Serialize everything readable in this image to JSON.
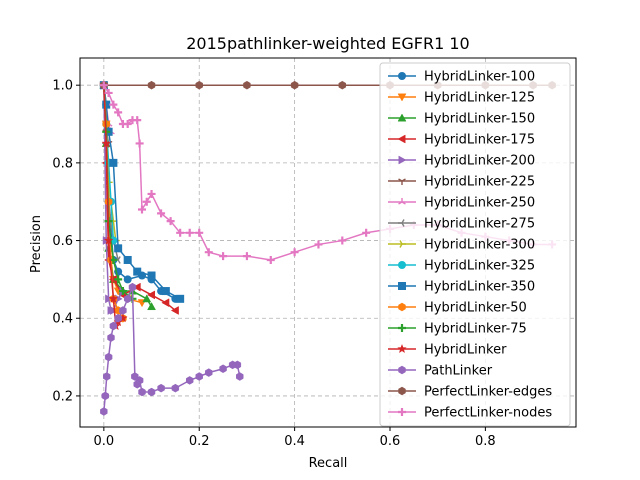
{
  "chart_data": {
    "type": "line",
    "title": "2015pathlinker-weighted EGFR1 10",
    "xlabel": "Recall",
    "ylabel": "Precision",
    "xlim": [
      -0.05,
      0.99
    ],
    "ylim": [
      0.12,
      1.07
    ],
    "xticks": [
      0.0,
      0.2,
      0.4,
      0.6,
      0.8
    ],
    "yticks": [
      0.2,
      0.4,
      0.6,
      0.8,
      1.0
    ],
    "xtick_labels": [
      "0.0",
      "0.2",
      "0.4",
      "0.6",
      "0.8"
    ],
    "ytick_labels": [
      "0.2",
      "0.4",
      "0.6",
      "0.8",
      "1.0"
    ],
    "grid": true,
    "legend_position": "upper right",
    "series": [
      {
        "name": "HybridLinker-100",
        "color": "#1f77b4",
        "marker": "circle",
        "x": [
          0.0,
          0.005,
          0.01,
          0.02,
          0.03,
          0.05,
          0.08,
          0.1,
          0.12,
          0.15
        ],
        "y": [
          1.0,
          0.95,
          0.7,
          0.55,
          0.52,
          0.5,
          0.51,
          0.5,
          0.47,
          0.45
        ]
      },
      {
        "name": "HybridLinker-125",
        "color": "#ff7f0e",
        "marker": "triangle-down",
        "x": [
          0.0,
          0.005,
          0.01,
          0.02,
          0.03,
          0.05,
          0.08
        ],
        "y": [
          1.0,
          0.9,
          0.6,
          0.5,
          0.47,
          0.45,
          0.44
        ]
      },
      {
        "name": "HybridLinker-150",
        "color": "#2ca02c",
        "marker": "triangle-up",
        "x": [
          0.0,
          0.005,
          0.01,
          0.02,
          0.04,
          0.06,
          0.09,
          0.1
        ],
        "y": [
          1.0,
          0.85,
          0.58,
          0.5,
          0.47,
          0.47,
          0.45,
          0.43
        ]
      },
      {
        "name": "HybridLinker-175",
        "color": "#d62728",
        "marker": "triangle-left",
        "x": [
          0.0,
          0.005,
          0.01,
          0.02,
          0.04,
          0.07,
          0.1,
          0.13,
          0.15
        ],
        "y": [
          1.0,
          0.8,
          0.55,
          0.5,
          0.46,
          0.48,
          0.46,
          0.44,
          0.42
        ]
      },
      {
        "name": "HybridLinker-200",
        "color": "#9467bd",
        "marker": "triangle-right",
        "x": [
          0.0,
          0.005,
          0.01,
          0.015,
          0.02,
          0.03,
          0.04
        ],
        "y": [
          1.0,
          0.6,
          0.45,
          0.42,
          0.42,
          0.45,
          0.47
        ]
      },
      {
        "name": "HybridLinker-225",
        "color": "#8c564b",
        "marker": "tri-down",
        "x": [
          0.0,
          0.005,
          0.01
        ],
        "y": [
          1.0,
          0.88,
          0.85
        ]
      },
      {
        "name": "HybridLinker-250",
        "color": "#e377c2",
        "marker": "tri-up",
        "x": [
          0.0,
          0.005,
          0.01,
          0.015
        ],
        "y": [
          1.0,
          0.95,
          0.9,
          0.88
        ]
      },
      {
        "name": "HybridLinker-275",
        "color": "#7f7f7f",
        "marker": "tri-left",
        "x": [
          0.0,
          0.005,
          0.01,
          0.02,
          0.03
        ],
        "y": [
          1.0,
          0.85,
          0.7,
          0.6,
          0.55
        ]
      },
      {
        "name": "HybridLinker-300",
        "color": "#bcbd22",
        "marker": "tri-right",
        "x": [
          0.0,
          0.005,
          0.01,
          0.02,
          0.025
        ],
        "y": [
          1.0,
          0.9,
          0.75,
          0.65,
          0.6
        ]
      },
      {
        "name": "HybridLinker-325",
        "color": "#17becf",
        "marker": "circle",
        "x": [
          0.0,
          0.005,
          0.01,
          0.015,
          0.02
        ],
        "y": [
          1.0,
          0.9,
          0.8,
          0.7,
          0.6
        ]
      },
      {
        "name": "HybridLinker-350",
        "color": "#1f77b4",
        "marker": "square",
        "x": [
          0.0,
          0.005,
          0.01,
          0.02,
          0.03,
          0.05,
          0.07,
          0.1,
          0.13,
          0.16
        ],
        "y": [
          1.0,
          0.95,
          0.88,
          0.8,
          0.58,
          0.55,
          0.52,
          0.51,
          0.47,
          0.45
        ]
      },
      {
        "name": "HybridLinker-50",
        "color": "#ff7f0e",
        "marker": "hexagon",
        "x": [
          0.0,
          0.005,
          0.01,
          0.015,
          0.02,
          0.03,
          0.04
        ],
        "y": [
          1.0,
          0.9,
          0.7,
          0.55,
          0.45,
          0.42,
          0.4
        ]
      },
      {
        "name": "HybridLinker-75",
        "color": "#2ca02c",
        "marker": "plus",
        "x": [
          0.0,
          0.005,
          0.01,
          0.02,
          0.03,
          0.04,
          0.06
        ],
        "y": [
          1.0,
          0.88,
          0.65,
          0.55,
          0.5,
          0.47,
          0.45
        ]
      },
      {
        "name": "HybridLinker",
        "color": "#d62728",
        "marker": "star",
        "x": [
          0.0,
          0.005,
          0.01,
          0.02,
          0.025,
          0.03,
          0.04
        ],
        "y": [
          1.0,
          0.85,
          0.6,
          0.45,
          0.38,
          0.39,
          0.4
        ]
      },
      {
        "name": "PathLinker",
        "color": "#9467bd",
        "marker": "hexagon",
        "x": [
          0.0,
          0.003,
          0.006,
          0.01,
          0.015,
          0.02,
          0.03,
          0.04,
          0.05,
          0.06,
          0.065,
          0.07,
          0.075,
          0.08,
          0.1,
          0.12,
          0.15,
          0.18,
          0.2,
          0.22,
          0.25,
          0.27,
          0.28,
          0.285
        ],
        "y": [
          0.16,
          0.2,
          0.25,
          0.3,
          0.35,
          0.38,
          0.4,
          0.42,
          0.45,
          0.48,
          0.25,
          0.23,
          0.24,
          0.21,
          0.21,
          0.22,
          0.22,
          0.24,
          0.25,
          0.26,
          0.27,
          0.28,
          0.28,
          0.25
        ]
      },
      {
        "name": "PerfectLinker-edges",
        "color": "#8c564b",
        "marker": "hexagon",
        "x": [
          0.0,
          0.1,
          0.2,
          0.3,
          0.4,
          0.5,
          0.6,
          0.7,
          0.8,
          0.9,
          0.94
        ],
        "y": [
          1.0,
          1.0,
          1.0,
          1.0,
          1.0,
          1.0,
          1.0,
          1.0,
          1.0,
          1.0,
          1.0
        ]
      },
      {
        "name": "PerfectLinker-nodes",
        "color": "#e377c2",
        "marker": "plus",
        "x": [
          0.0,
          0.01,
          0.02,
          0.03,
          0.04,
          0.05,
          0.06,
          0.07,
          0.075,
          0.08,
          0.09,
          0.1,
          0.12,
          0.14,
          0.16,
          0.18,
          0.2,
          0.22,
          0.25,
          0.3,
          0.35,
          0.4,
          0.45,
          0.5,
          0.55,
          0.6,
          0.65,
          0.7,
          0.75,
          0.8,
          0.85,
          0.9,
          0.94
        ],
        "y": [
          1.0,
          0.98,
          0.95,
          0.93,
          0.9,
          0.9,
          0.91,
          0.91,
          0.85,
          0.68,
          0.7,
          0.72,
          0.67,
          0.65,
          0.62,
          0.62,
          0.62,
          0.57,
          0.56,
          0.56,
          0.55,
          0.57,
          0.59,
          0.6,
          0.62,
          0.63,
          0.64,
          0.64,
          0.62,
          0.61,
          0.6,
          0.59,
          0.59
        ]
      }
    ]
  }
}
